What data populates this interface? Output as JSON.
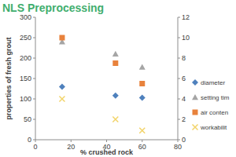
{
  "chart_data": {
    "type": "scatter",
    "title": "NLS Preprocessing",
    "x_label": "% crushed rock",
    "y_label": "properties of fresh grout",
    "x": [
      15,
      45,
      60
    ],
    "xlim": [
      0,
      80
    ],
    "xticks": [
      0,
      20,
      40,
      60,
      80
    ],
    "ylim": [
      0,
      300
    ],
    "yticks": [
      0,
      50,
      100,
      150,
      200,
      250,
      300
    ],
    "y2lim": [
      0,
      12
    ],
    "y2ticks": [
      0,
      2,
      4,
      6,
      8,
      10,
      12
    ],
    "grid": false,
    "legend": "right",
    "series": [
      {
        "name": "diameter",
        "color": "#4f81bd",
        "marker": "diamond",
        "values": [
          130,
          108,
          103
        ]
      },
      {
        "name": "setting tim",
        "color": "#a5a5a5",
        "marker": "triangle",
        "values": [
          240,
          210,
          178
        ]
      },
      {
        "name": "air conten",
        "color": "#e8823c",
        "marker": "square",
        "axis": "y2",
        "values": [
          10,
          7.5,
          5.5
        ]
      },
      {
        "name": "workabilit",
        "color": "#f2d46a",
        "marker": "x",
        "axis": "y2",
        "values": [
          4,
          2,
          0.9
        ]
      }
    ]
  }
}
